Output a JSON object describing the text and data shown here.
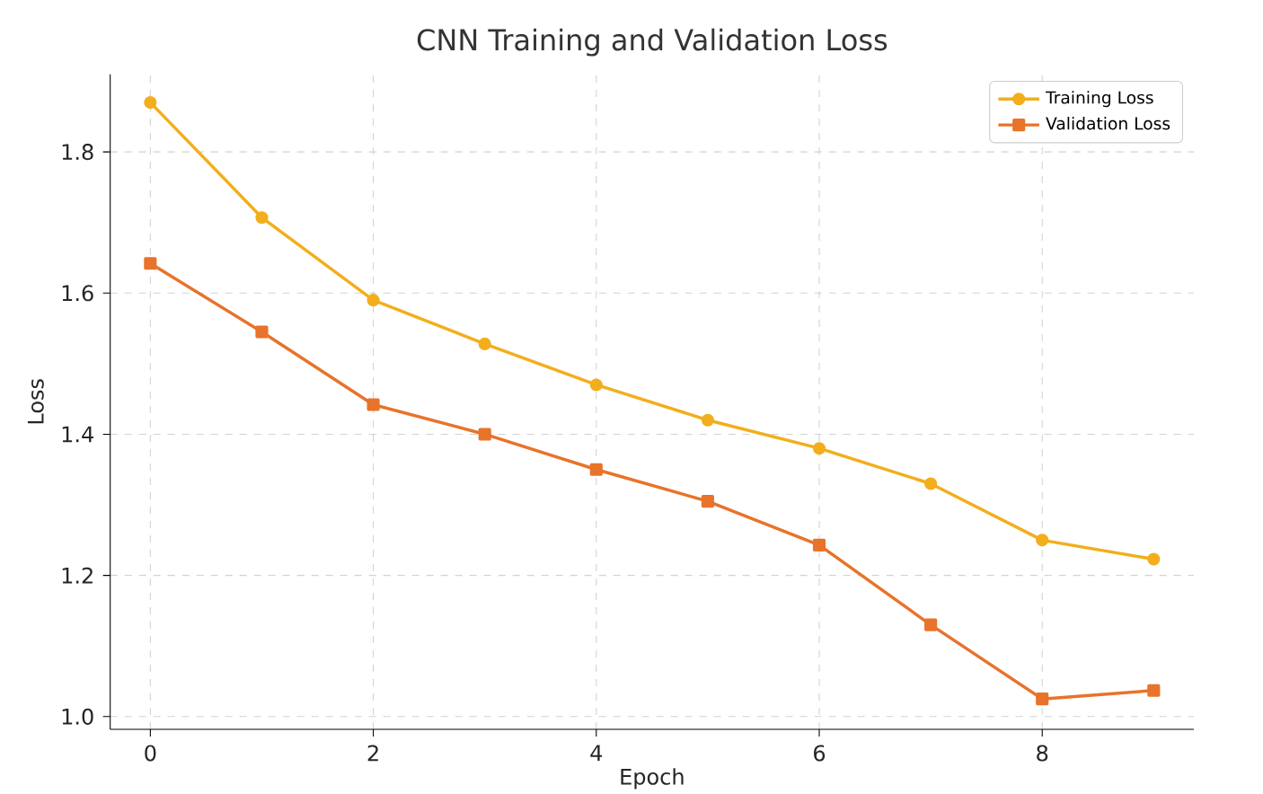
{
  "chart_data": {
    "type": "line",
    "title": "CNN Training and Validation Loss",
    "xlabel": "Epoch",
    "ylabel": "Loss",
    "x": [
      0,
      1,
      2,
      3,
      4,
      5,
      6,
      7,
      8,
      9
    ],
    "series": [
      {
        "name": "Training Loss",
        "color": "#f2ae1c",
        "marker": "circle",
        "values": [
          1.87,
          1.707,
          1.59,
          1.528,
          1.47,
          1.42,
          1.38,
          1.33,
          1.25,
          1.223
        ]
      },
      {
        "name": "Validation Loss",
        "color": "#e8732a",
        "marker": "square",
        "values": [
          1.642,
          1.545,
          1.442,
          1.4,
          1.35,
          1.305,
          1.243,
          1.13,
          1.025,
          1.037
        ]
      }
    ],
    "xlim": [
      -0.36,
      9.36
    ],
    "ylim": [
      0.982,
      1.91
    ],
    "xticks": [
      0,
      2,
      4,
      6,
      8
    ],
    "yticks": [
      {
        "value": 1,
        "label": "1.0"
      },
      1.2,
      1.4,
      1.6,
      1.8
    ],
    "grid": true,
    "legend": "top right",
    "line_style": "solid"
  }
}
